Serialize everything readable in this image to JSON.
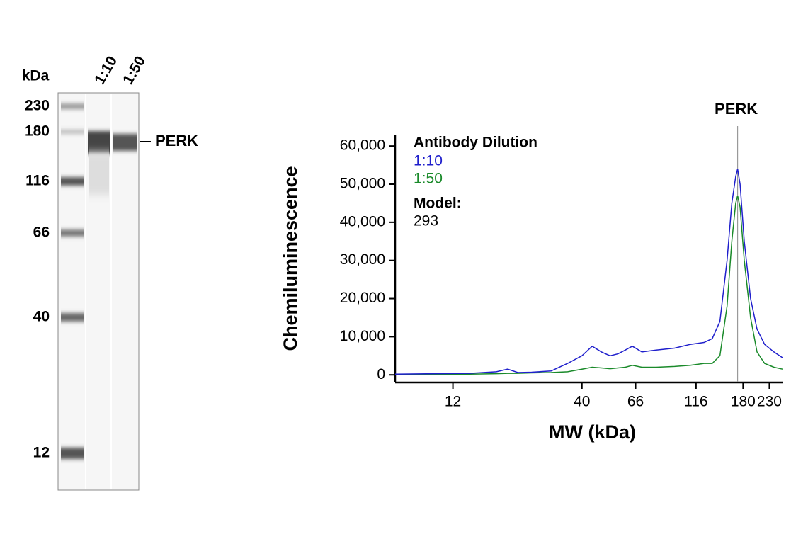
{
  "blot": {
    "unit_label": "kDa",
    "lanes": [
      "1:10",
      "1:50"
    ],
    "markers": [
      "230",
      "180",
      "116",
      "66",
      "40",
      "12"
    ],
    "target": "PERK"
  },
  "chart_data": {
    "type": "line",
    "xscale": "log",
    "xlabel": "MW (kDa)",
    "ylabel": "Chemiluminescence",
    "x": [
      7,
      10,
      14,
      18,
      20,
      22,
      25,
      30,
      35,
      40,
      44,
      48,
      52,
      56,
      60,
      64,
      70,
      80,
      95,
      110,
      125,
      135,
      145,
      155,
      162,
      168,
      171,
      175,
      182,
      193,
      205,
      220,
      240,
      260
    ],
    "series": [
      {
        "name": "1:10",
        "color": "#1f1fcc",
        "values": [
          200,
          300,
          400,
          800,
          1500,
          600,
          700,
          1000,
          3000,
          5000,
          7500,
          6000,
          5000,
          5500,
          6500,
          7500,
          6000,
          6500,
          7000,
          8000,
          8500,
          9500,
          14000,
          30000,
          45000,
          52000,
          54000,
          50000,
          35000,
          20000,
          12000,
          8000,
          6000,
          4500
        ]
      },
      {
        "name": "1:50",
        "color": "#1a8a2a",
        "values": [
          100,
          100,
          200,
          300,
          400,
          400,
          500,
          600,
          800,
          1500,
          2000,
          1800,
          1600,
          1800,
          2000,
          2500,
          2000,
          2000,
          2200,
          2500,
          3000,
          3000,
          5000,
          18000,
          35000,
          45000,
          47000,
          44000,
          30000,
          15000,
          6000,
          3000,
          2000,
          1500
        ]
      }
    ],
    "xlim": [
      7,
      260
    ],
    "xticks": [
      12,
      40,
      66,
      116,
      180,
      230
    ],
    "ylim": [
      -2000,
      63000
    ],
    "yticks": [
      0,
      {
        "value": 10000,
        "label": "10,000"
      },
      {
        "value": 20000,
        "label": "20,000"
      },
      {
        "value": 30000,
        "label": "30,000"
      },
      {
        "value": 40000,
        "label": "40,000"
      },
      {
        "value": 50000,
        "label": "50,000"
      },
      {
        "value": 60000,
        "label": "60,000"
      }
    ],
    "legend_title": "Antibody Dilution",
    "model_label": "Model:",
    "model": "293",
    "marker_line": {
      "label": "PERK",
      "x": 171
    }
  }
}
